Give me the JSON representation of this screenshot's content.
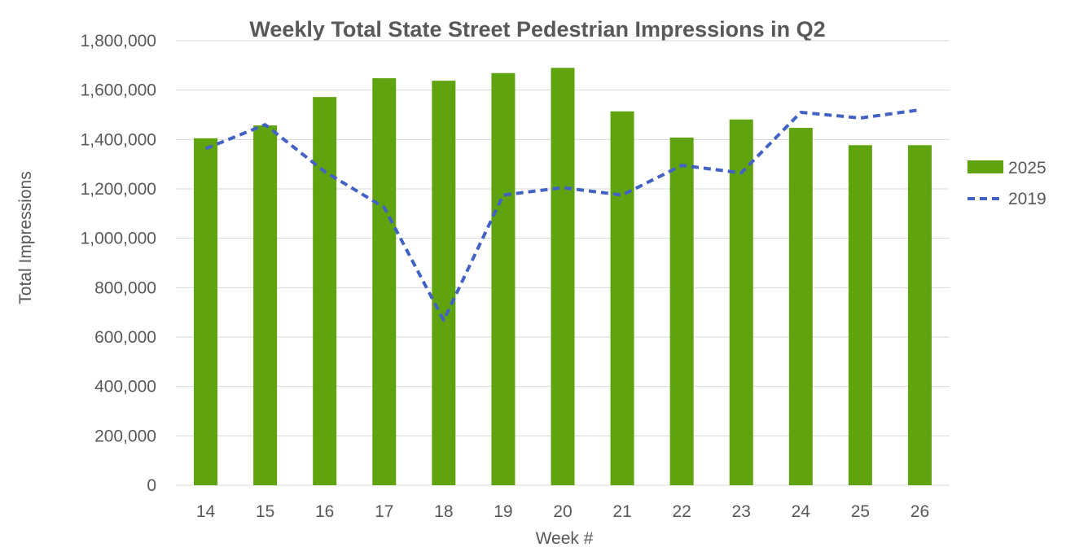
{
  "chart_data": {
    "type": "bar",
    "title": "Weekly  Total State Street Pedestrian Impressions in Q2",
    "xlabel": "Week #",
    "ylabel": "Total Impressions",
    "categories": [
      "14",
      "15",
      "16",
      "17",
      "18",
      "19",
      "20",
      "21",
      "22",
      "23",
      "24",
      "25",
      "26"
    ],
    "ylim": [
      0,
      1800000
    ],
    "yticks": [
      "0",
      "200,000",
      "400,000",
      "600,000",
      "800,000",
      "1,000,000",
      "1,200,000",
      "1,400,000",
      "1,600,000",
      "1,800,000"
    ],
    "grid": true,
    "legend_position": "right",
    "series": [
      {
        "name": "2025",
        "type": "bar",
        "color": "#5fa30f",
        "values": [
          1405000,
          1457000,
          1572000,
          1648000,
          1638000,
          1669000,
          1690000,
          1514000,
          1408000,
          1481000,
          1447000,
          1377000,
          1377000
        ]
      },
      {
        "name": "2019",
        "type": "line",
        "style": "dashed",
        "color": "#4262c4",
        "values": [
          1363000,
          1460000,
          1270000,
          1125000,
          668000,
          1175000,
          1205000,
          1175000,
          1295000,
          1265000,
          1510000,
          1487000,
          1520000
        ]
      }
    ]
  }
}
